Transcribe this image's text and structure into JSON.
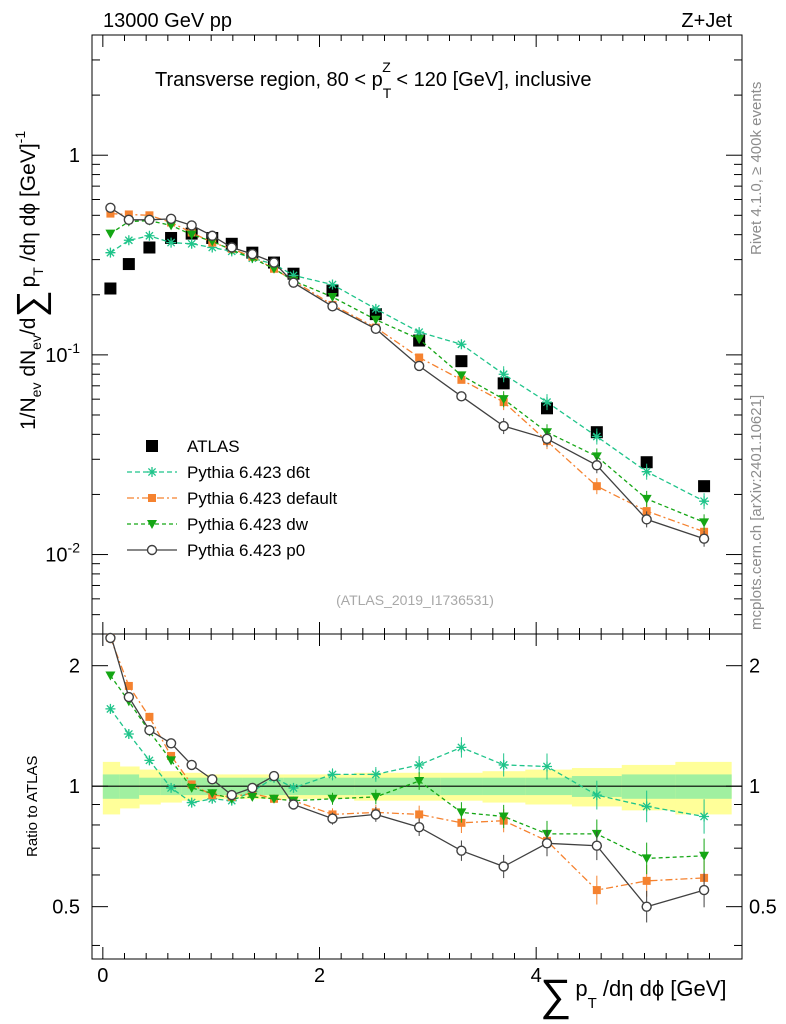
{
  "header": {
    "left": "13000 GeV pp",
    "right": "Z+Jet",
    "region_pre": "Transverse region, 80 < p",
    "region_sub": "T",
    "region_sup": "Z",
    "region_post": " < 120 [GeV], inclusive"
  },
  "side": {
    "rivet": "Rivet 4.1.0, ≥ 400k events",
    "mcplots": "mcplots.cern.ch [arXiv:2401.10621]"
  },
  "watermark": "(ATLAS_2019_I1736531)",
  "ylabel_top": {
    "a": "1/N",
    "a_sub": "ev",
    "b": " dN",
    "b_sub": "ev",
    "c": "/d",
    "sum": "∑",
    "d": "p",
    "d_sub": "T",
    "e": " /dη dϕ  [GeV]",
    "e_sup": "-1"
  },
  "ylabel_bottom": "Ratio to ATLAS",
  "xlabel": {
    "sum": "∑",
    "p": "p",
    "sub": "T",
    "rest": " /dη dϕ [GeV]"
  },
  "colors": {
    "ATLAS": "#000000",
    "d6t": "#1fc48a",
    "default": "#f5822f",
    "dw": "#14a614",
    "p0": "#404040",
    "band_inner": "#a0f0a0",
    "band_outer": "#ffff99"
  },
  "chart_data": [
    {
      "type": "scatter",
      "name": "main",
      "xlim": [
        -0.1,
        5.9
      ],
      "ylim": [
        0.004,
        4
      ],
      "yscale": "log",
      "x_ticks": [
        0,
        2,
        4
      ],
      "y_tick_labels": [
        "1",
        "10^-1",
        "10^-2"
      ],
      "x": [
        0.07,
        0.24,
        0.43,
        0.63,
        0.82,
        1.01,
        1.19,
        1.38,
        1.58,
        1.76,
        2.12,
        2.52,
        2.92,
        3.31,
        3.7,
        4.1,
        4.56,
        5.02,
        5.55
      ],
      "series": [
        {
          "name": "ATLAS",
          "key": "ATLAS",
          "marker": "square",
          "values": [
            0.215,
            0.285,
            0.345,
            0.385,
            0.405,
            0.385,
            0.36,
            0.325,
            0.29,
            0.255,
            0.21,
            0.16,
            0.118,
            0.093,
            0.072,
            0.054,
            0.041,
            0.029,
            0.022
          ]
        },
        {
          "name": "Pythia 6.423 d6t",
          "key": "d6t",
          "marker": "star",
          "dash": "5,3",
          "values": [
            0.325,
            0.375,
            0.395,
            0.365,
            0.36,
            0.345,
            0.33,
            0.305,
            0.285,
            0.25,
            0.225,
            0.17,
            0.13,
            0.113,
            0.08,
            0.058,
            0.039,
            0.026,
            0.0185
          ]
        },
        {
          "name": "Pythia 6.423 default",
          "key": "default",
          "marker": "square-small",
          "dash": "7,3,2,3",
          "values": [
            0.51,
            0.505,
            0.5,
            0.46,
            0.41,
            0.365,
            0.34,
            0.31,
            0.27,
            0.235,
            0.178,
            0.137,
            0.097,
            0.075,
            0.058,
            0.037,
            0.022,
            0.0165,
            0.013
          ]
        },
        {
          "name": "Pythia 6.423 dw",
          "key": "dw",
          "marker": "triangle-down",
          "dash": "4,3",
          "values": [
            0.405,
            0.465,
            0.47,
            0.445,
            0.4,
            0.37,
            0.335,
            0.305,
            0.27,
            0.235,
            0.195,
            0.15,
            0.12,
            0.079,
            0.06,
            0.041,
            0.031,
            0.019,
            0.0145
          ]
        },
        {
          "name": "Pythia 6.423 p0",
          "key": "p0",
          "marker": "circle-open",
          "dash": "",
          "values": [
            0.545,
            0.475,
            0.475,
            0.48,
            0.445,
            0.395,
            0.345,
            0.32,
            0.29,
            0.23,
            0.175,
            0.135,
            0.088,
            0.062,
            0.044,
            0.038,
            0.028,
            0.015,
            0.012
          ]
        }
      ],
      "legend_position": "lower-left"
    },
    {
      "type": "scatter",
      "name": "ratio",
      "xlim": [
        -0.1,
        5.9
      ],
      "ylim": [
        0.37,
        2.4
      ],
      "yscale": "log",
      "y_ticks": [
        0.5,
        1,
        2
      ],
      "ref_band": {
        "inner": [
          0.07,
          0.07,
          0.05,
          0.05,
          0.05,
          0.05,
          0.05,
          0.05,
          0.05,
          0.05,
          0.05,
          0.05,
          0.05,
          0.05,
          0.05,
          0.05,
          0.06,
          0.07,
          0.07
        ],
        "outer": [
          0.15,
          0.12,
          0.1,
          0.09,
          0.08,
          0.07,
          0.07,
          0.07,
          0.07,
          0.07,
          0.07,
          0.08,
          0.08,
          0.08,
          0.09,
          0.1,
          0.11,
          0.13,
          0.15
        ]
      },
      "series": [
        {
          "key": "d6t",
          "values": [
            1.56,
            1.35,
            1.16,
            0.99,
            0.91,
            0.93,
            0.92,
            0.97,
            1.05,
            0.99,
            1.07,
            1.07,
            1.13,
            1.25,
            1.13,
            1.12,
            0.95,
            0.89,
            0.84
          ]
        },
        {
          "key": "default",
          "values": [
            2.35,
            1.78,
            1.49,
            1.19,
            1.01,
            0.95,
            0.94,
            0.96,
            0.93,
            0.92,
            0.85,
            0.86,
            0.85,
            0.81,
            0.82,
            0.73,
            0.55,
            0.58,
            0.59
          ]
        },
        {
          "key": "dw",
          "values": [
            1.89,
            1.63,
            1.37,
            1.16,
            0.99,
            0.96,
            0.93,
            0.94,
            0.93,
            0.92,
            0.93,
            0.94,
            1.03,
            0.86,
            0.84,
            0.76,
            0.76,
            0.66,
            0.67
          ]
        },
        {
          "key": "p0",
          "values": [
            2.4,
            1.67,
            1.38,
            1.28,
            1.13,
            1.04,
            0.95,
            0.99,
            1.06,
            0.9,
            0.83,
            0.85,
            0.79,
            0.69,
            0.63,
            0.72,
            0.71,
            0.5,
            0.55
          ]
        }
      ]
    }
  ]
}
